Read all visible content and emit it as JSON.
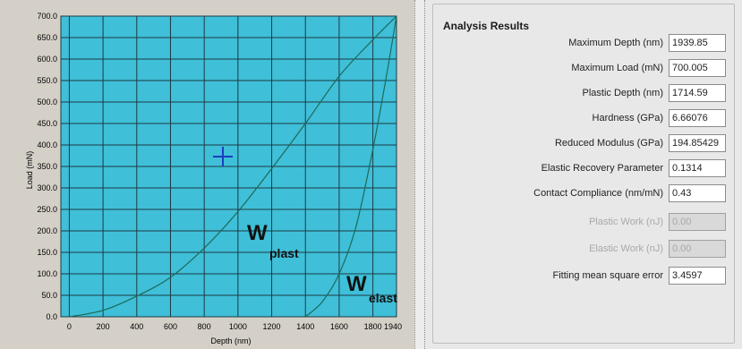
{
  "chart_data": {
    "type": "line",
    "xlabel": "Depth (nm)",
    "ylabel": "Load (mN)",
    "xlim": [
      -50,
      1940
    ],
    "ylim": [
      0,
      700
    ],
    "x_ticks": [
      "0",
      "200",
      "400",
      "600",
      "800",
      "1000",
      "1200",
      "1400",
      "1600",
      "1800",
      "1940"
    ],
    "y_ticks": [
      "0.0",
      "50.0",
      "100.0",
      "150.0",
      "200.0",
      "250.0",
      "300.0",
      "350.0",
      "400.0",
      "450.0",
      "500.0",
      "550.0",
      "600.0",
      "650.0",
      "700.0"
    ],
    "grid": true,
    "plot_bg": "#3fbfd8",
    "line_color": "#1e6a5a",
    "series": [
      {
        "values": [
          [
            0,
            0
          ],
          [
            200,
            15
          ],
          [
            400,
            48
          ],
          [
            600,
            92
          ],
          [
            800,
            160
          ],
          [
            1000,
            245
          ],
          [
            1200,
            345
          ],
          [
            1400,
            450
          ],
          [
            1600,
            560
          ],
          [
            1800,
            645
          ],
          [
            1940,
            700
          ]
        ]
      },
      {
        "values": [
          [
            1400,
            0
          ],
          [
            1500,
            35
          ],
          [
            1600,
            100
          ],
          [
            1700,
            210
          ],
          [
            1800,
            390
          ],
          [
            1880,
            560
          ],
          [
            1940,
            700
          ]
        ]
      }
    ],
    "annotations": [
      {
        "label": "W",
        "sub": "plast"
      },
      {
        "label": "W",
        "sub": "elast"
      }
    ]
  },
  "results": {
    "title": "Analysis Results",
    "rows": [
      {
        "label": "Maximum Depth (nm)",
        "value": "1939.85",
        "enabled": true
      },
      {
        "label": "Maximum Load (mN)",
        "value": "700.005",
        "enabled": true
      },
      {
        "label": "Plastic Depth (nm)",
        "value": "1714.59",
        "enabled": true
      },
      {
        "label": "Hardness (GPa)",
        "value": "6.66076",
        "enabled": true
      },
      {
        "label": "Reduced Modulus (GPa)",
        "value": "194.85429",
        "enabled": true
      },
      {
        "label": "Elastic Recovery Parameter",
        "value": "0.1314",
        "enabled": true
      },
      {
        "label": "Contact Compliance (nm/mN)",
        "value": "0.43",
        "enabled": true
      },
      {
        "label": "Plastic Work (nJ)",
        "value": "0.00",
        "enabled": false
      },
      {
        "label": "Elastic Work (nJ)",
        "value": "0.00",
        "enabled": false
      },
      {
        "label": "Fitting mean square error",
        "value": "3.4597",
        "enabled": true
      }
    ]
  }
}
